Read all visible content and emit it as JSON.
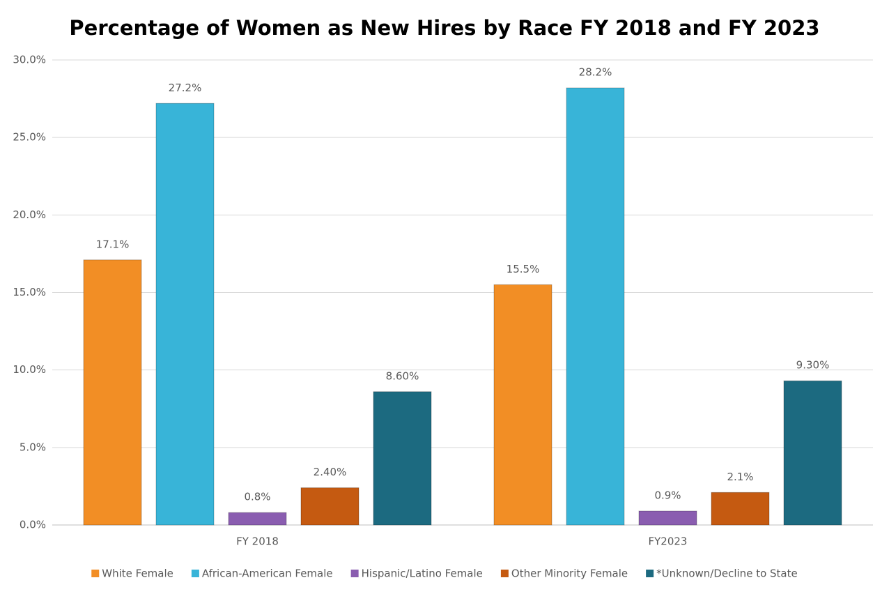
{
  "chart_data": {
    "type": "bar",
    "title": "Percentage of Women as New Hires by Race FY 2018 and FY 2023",
    "categories": [
      "FY 2018",
      "FY2023"
    ],
    "series": [
      {
        "name": "White Female",
        "color": "#f28e25",
        "values": [
          17.1,
          15.5
        ],
        "value_labels": [
          "17.1%",
          "15.5%"
        ]
      },
      {
        "name": "African-American Female",
        "color": "#38b4d8",
        "values": [
          27.2,
          28.2
        ],
        "value_labels": [
          "27.2%",
          "28.2%"
        ]
      },
      {
        "name": "Hispanic/Latino Female",
        "color": "#8a5db0",
        "values": [
          0.8,
          0.9
        ],
        "value_labels": [
          "0.8%",
          "0.9%"
        ]
      },
      {
        "name": "Other Minority Female",
        "color": "#c55a11",
        "values": [
          2.4,
          2.1
        ],
        "value_labels": [
          "2.40%",
          "2.1%"
        ]
      },
      {
        "name": "*Unknown/Decline to State",
        "color": "#1c6a80",
        "values": [
          8.6,
          9.3
        ],
        "value_labels": [
          "8.60%",
          "9.30%"
        ]
      }
    ],
    "ylim": [
      0,
      30
    ],
    "yticks": [
      {
        "value": 0,
        "label": "0.0%"
      },
      {
        "value": 5,
        "label": "5.0%"
      },
      {
        "value": 10,
        "label": "10.0%"
      },
      {
        "value": 15,
        "label": "15.0%"
      },
      {
        "value": 20,
        "label": "20.0%"
      },
      {
        "value": 25,
        "label": "25.0%"
      },
      {
        "value": 30,
        "label": "30.0%"
      }
    ],
    "grid": true,
    "legend": "bottom"
  }
}
